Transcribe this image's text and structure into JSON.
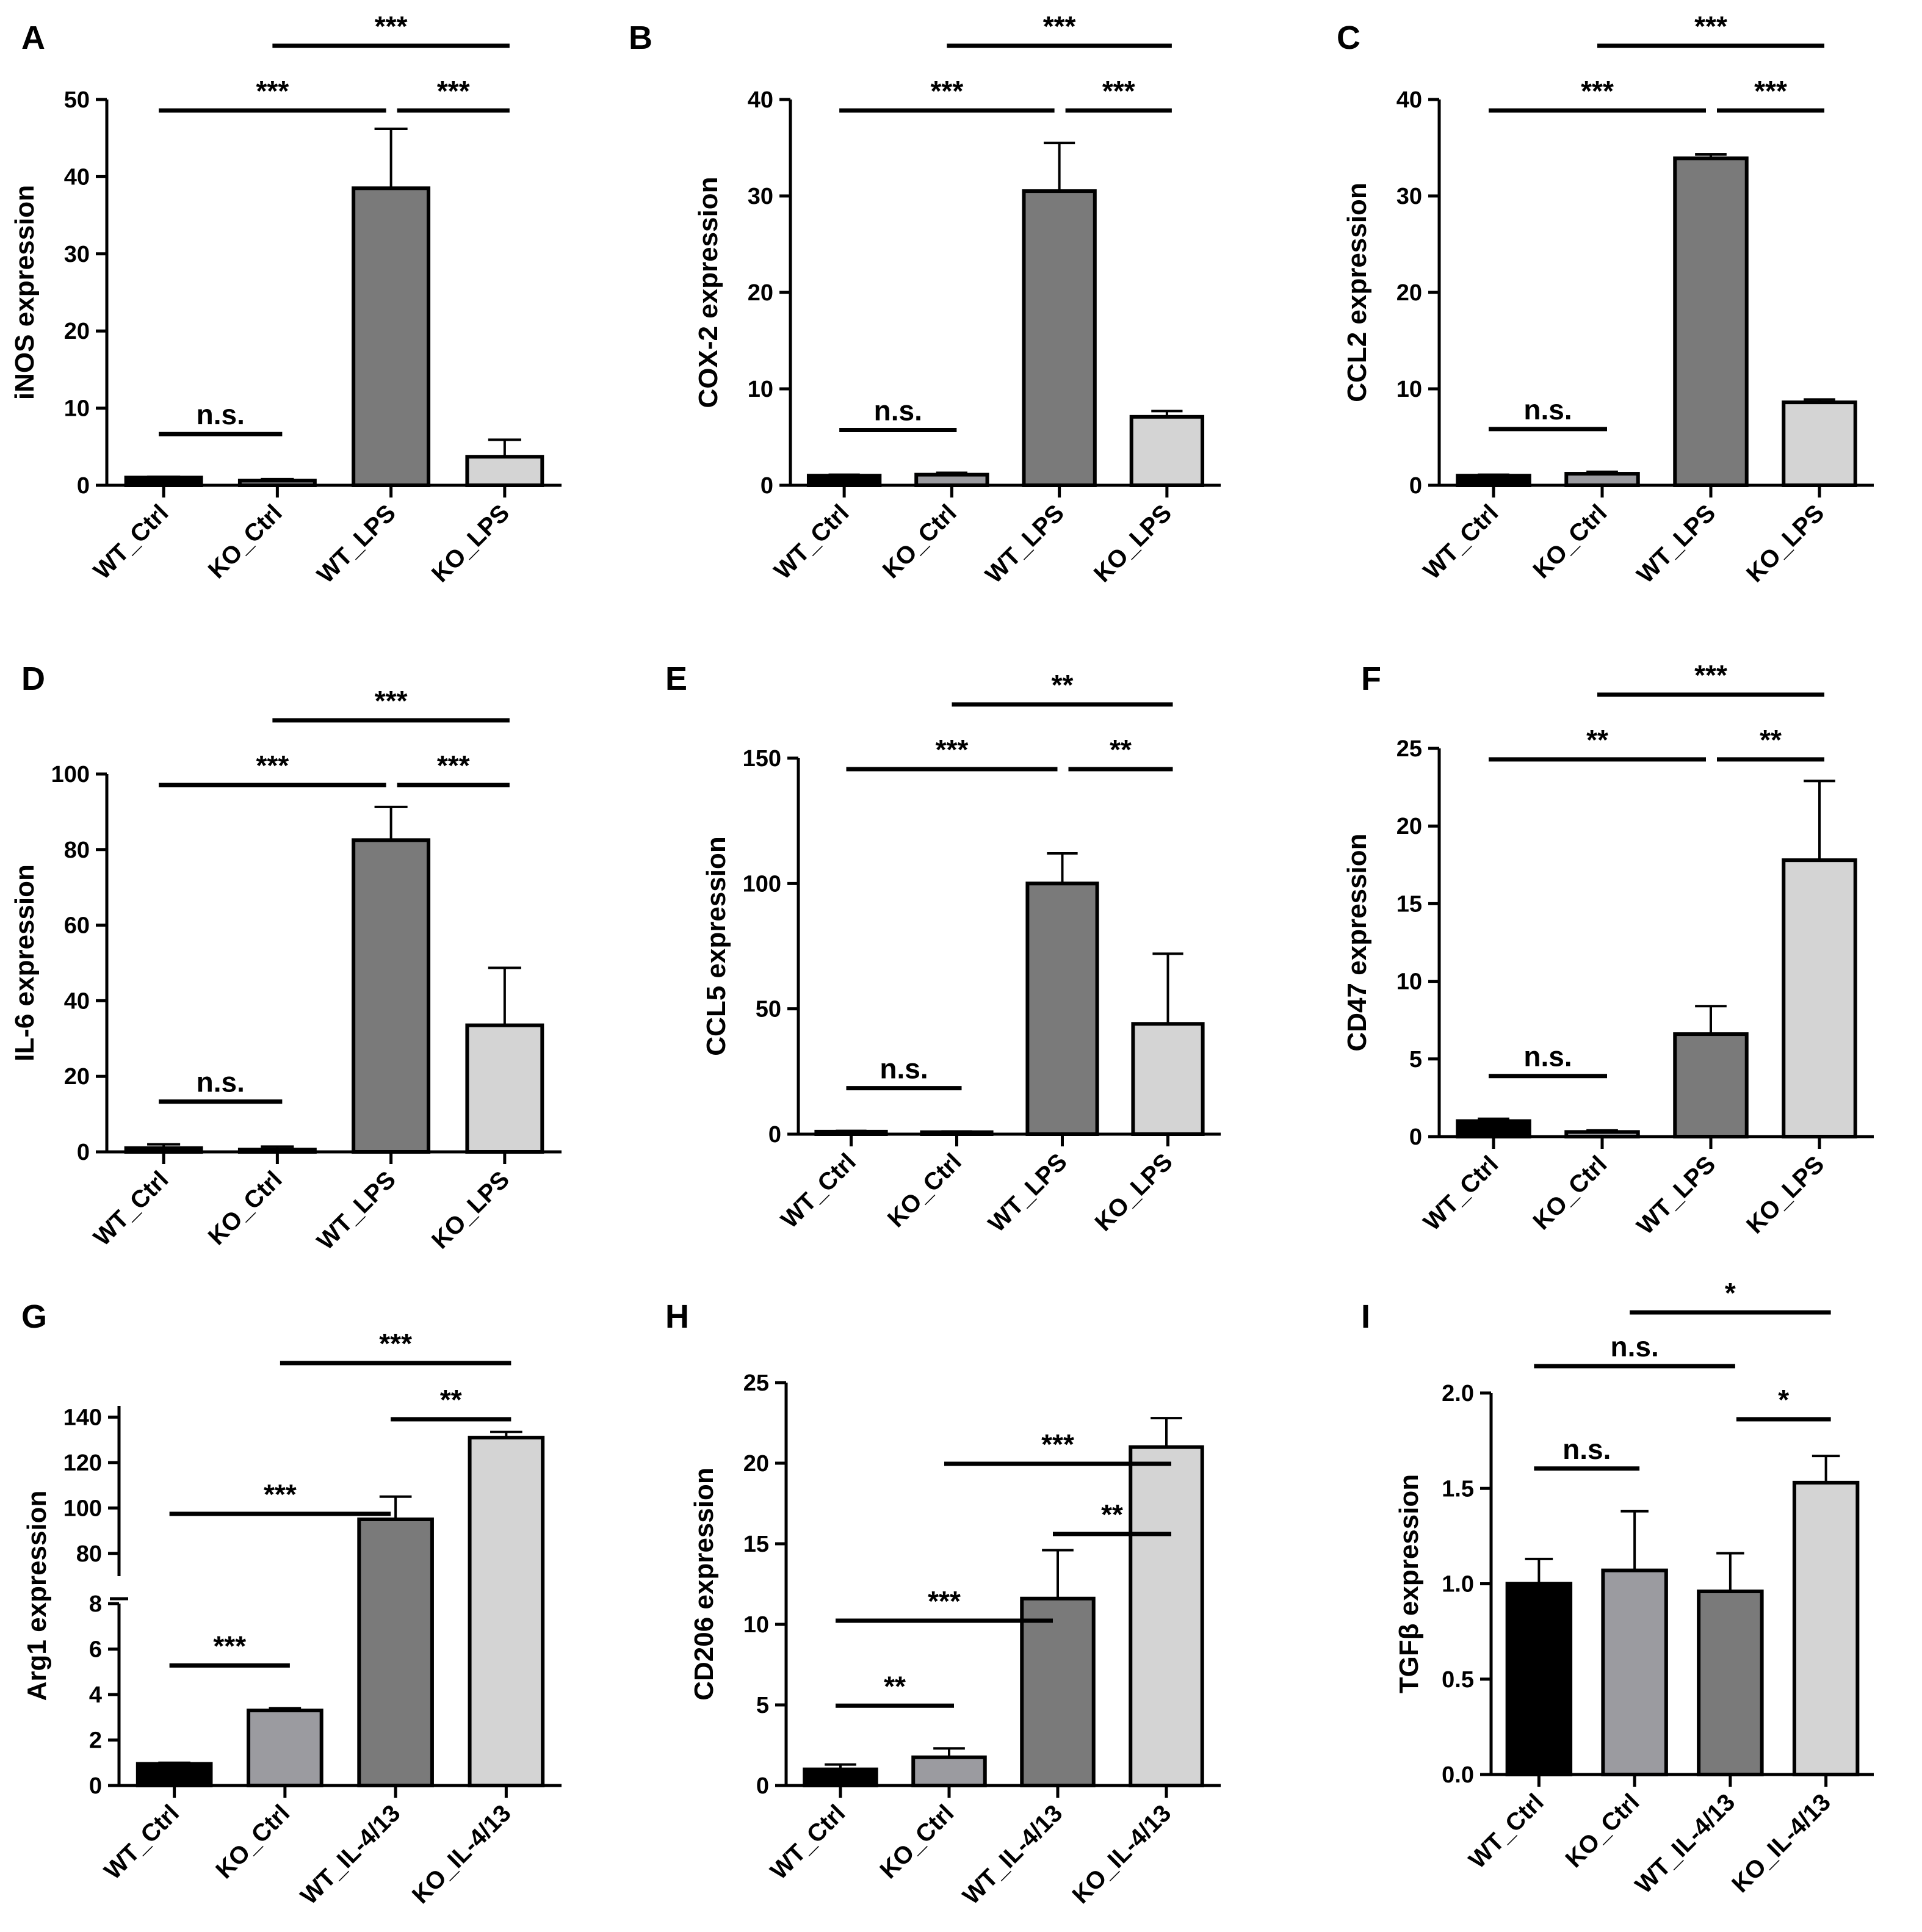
{
  "figure": {
    "panel_count": 9
  },
  "chart_data": [
    {
      "panel": "A",
      "type": "bar",
      "ylabel": "iNOS expression",
      "categories": [
        "WT_Ctrl",
        "KO_Ctrl",
        "WT_LPS",
        "KO_LPS"
      ],
      "values": [
        1.0,
        0.6,
        38.5,
        3.7
      ],
      "errors": [
        0.1,
        0.2,
        7.7,
        2.2
      ],
      "colors": [
        "#000000",
        "#9b9ba0",
        "#7a7a7a",
        "#d4d4d4"
      ],
      "ylim": [
        0,
        50
      ],
      "yticks": [
        0,
        10,
        20,
        30,
        40,
        50
      ],
      "brackets": [
        {
          "from": 0,
          "to": 1,
          "label": "n.s.",
          "level": 0
        },
        {
          "from": 0,
          "to": 2,
          "label": "***",
          "level": 1
        },
        {
          "from": 2,
          "to": 3,
          "label": "***",
          "level": 1
        },
        {
          "from": 1,
          "to": 3,
          "label": "***",
          "level": 2
        }
      ]
    },
    {
      "panel": "B",
      "type": "bar",
      "ylabel": "COX-2 expression",
      "categories": [
        "WT_Ctrl",
        "KO_Ctrl",
        "WT_LPS",
        "KO_LPS"
      ],
      "values": [
        1.0,
        1.1,
        30.5,
        7.1
      ],
      "errors": [
        0.1,
        0.2,
        5.0,
        0.6
      ],
      "colors": [
        "#000000",
        "#9b9ba0",
        "#7a7a7a",
        "#d4d4d4"
      ],
      "ylim": [
        0,
        40
      ],
      "yticks": [
        0,
        10,
        20,
        30,
        40
      ],
      "brackets": [
        {
          "from": 0,
          "to": 1,
          "label": "n.s.",
          "level": 0
        },
        {
          "from": 0,
          "to": 2,
          "label": "***",
          "level": 1
        },
        {
          "from": 2,
          "to": 3,
          "label": "***",
          "level": 1
        },
        {
          "from": 1,
          "to": 3,
          "label": "***",
          "level": 2
        }
      ]
    },
    {
      "panel": "C",
      "type": "bar",
      "ylabel": "CCL2 expression",
      "categories": [
        "WT_Ctrl",
        "KO_Ctrl",
        "WT_LPS",
        "KO_LPS"
      ],
      "values": [
        1.0,
        1.2,
        33.9,
        8.6
      ],
      "errors": [
        0.1,
        0.2,
        0.4,
        0.3
      ],
      "colors": [
        "#000000",
        "#9b9ba0",
        "#7a7a7a",
        "#d4d4d4"
      ],
      "ylim": [
        0,
        40
      ],
      "yticks": [
        0,
        10,
        20,
        30,
        40
      ],
      "brackets": [
        {
          "from": 0,
          "to": 1,
          "label": "n.s.",
          "level": 0
        },
        {
          "from": 0,
          "to": 2,
          "label": "***",
          "level": 1
        },
        {
          "from": 2,
          "to": 3,
          "label": "***",
          "level": 1
        },
        {
          "from": 1,
          "to": 3,
          "label": "***",
          "level": 2
        }
      ]
    },
    {
      "panel": "D",
      "type": "bar",
      "ylabel": "IL-6 expression",
      "categories": [
        "WT_Ctrl",
        "KO_Ctrl",
        "WT_LPS",
        "KO_LPS"
      ],
      "values": [
        1.0,
        0.6,
        82.5,
        33.5
      ],
      "errors": [
        1.0,
        0.8,
        8.8,
        15.2
      ],
      "colors": [
        "#000000",
        "#9b9ba0",
        "#7a7a7a",
        "#d4d4d4"
      ],
      "ylim": [
        0,
        100
      ],
      "yticks": [
        0,
        20,
        40,
        60,
        80,
        100
      ],
      "brackets": [
        {
          "from": 0,
          "to": 1,
          "label": "n.s.",
          "level": 0
        },
        {
          "from": 0,
          "to": 2,
          "label": "***",
          "level": 1
        },
        {
          "from": 2,
          "to": 3,
          "label": "***",
          "level": 1
        },
        {
          "from": 1,
          "to": 3,
          "label": "***",
          "level": 2
        }
      ]
    },
    {
      "panel": "E",
      "type": "bar",
      "ylabel": "CCL5 expression",
      "categories": [
        "WT_Ctrl",
        "KO_Ctrl",
        "WT_LPS",
        "KO_LPS"
      ],
      "values": [
        1.0,
        0.8,
        100,
        44
      ],
      "errors": [
        0.3,
        0.3,
        12,
        28
      ],
      "colors": [
        "#000000",
        "#9b9ba0",
        "#7a7a7a",
        "#d4d4d4"
      ],
      "ylim": [
        0,
        150
      ],
      "yticks": [
        0,
        50,
        100,
        150
      ],
      "brackets": [
        {
          "from": 0,
          "to": 1,
          "label": "n.s.",
          "level": 0
        },
        {
          "from": 0,
          "to": 2,
          "label": "***",
          "level": 1
        },
        {
          "from": 2,
          "to": 3,
          "label": "**",
          "level": 1
        },
        {
          "from": 1,
          "to": 3,
          "label": "**",
          "level": 2
        }
      ]
    },
    {
      "panel": "F",
      "type": "bar",
      "ylabel": "CD47 expression",
      "categories": [
        "WT_Ctrl",
        "KO_Ctrl",
        "WT_LPS",
        "KO_LPS"
      ],
      "values": [
        1.0,
        0.3,
        6.6,
        17.8
      ],
      "errors": [
        0.15,
        0.1,
        1.8,
        5.1
      ],
      "colors": [
        "#000000",
        "#9b9ba0",
        "#7a7a7a",
        "#d4d4d4"
      ],
      "ylim": [
        0,
        25
      ],
      "yticks": [
        0,
        5,
        10,
        15,
        20,
        25
      ],
      "brackets": [
        {
          "from": 0,
          "to": 1,
          "label": "n.s.",
          "level": 0
        },
        {
          "from": 0,
          "to": 2,
          "label": "**",
          "level": 1
        },
        {
          "from": 2,
          "to": 3,
          "label": "**",
          "level": 1
        },
        {
          "from": 1,
          "to": 3,
          "label": "***",
          "level": 2
        }
      ]
    },
    {
      "panel": "G",
      "type": "bar",
      "ylabel": "Arg1 expression",
      "categories": [
        "WT_Ctrl",
        "KO_Ctrl",
        "WT_IL-4/13",
        "KO_IL-4/13"
      ],
      "values": [
        0.95,
        3.3,
        95,
        131
      ],
      "errors": [
        0.05,
        0.1,
        10,
        2.5
      ],
      "colors": [
        "#000000",
        "#9b9ba0",
        "#7a7a7a",
        "#d4d4d4"
      ],
      "broken_axis": {
        "lower": [
          0,
          8
        ],
        "upper": [
          70,
          145
        ]
      },
      "yticks_lower": [
        0,
        2,
        4,
        6,
        8
      ],
      "yticks_upper": [
        80,
        100,
        120,
        140
      ],
      "brackets": [
        {
          "from": 0,
          "to": 1,
          "label": "***",
          "level": 0
        },
        {
          "from": 0,
          "to": 2,
          "label": "***",
          "level": 1
        },
        {
          "from": 2,
          "to": 3,
          "label": "**",
          "level": 2
        },
        {
          "from": 1,
          "to": 3,
          "label": "***",
          "level": 3
        }
      ]
    },
    {
      "panel": "H",
      "type": "bar",
      "ylabel": "CD206 expression",
      "categories": [
        "WT_Ctrl",
        "KO_Ctrl",
        "WT_IL-4/13",
        "KO_IL-4/13"
      ],
      "values": [
        1.0,
        1.75,
        11.6,
        21.0
      ],
      "errors": [
        0.3,
        0.55,
        3.0,
        1.8
      ],
      "colors": [
        "#000000",
        "#9b9ba0",
        "#7a7a7a",
        "#d4d4d4"
      ],
      "ylim": [
        0,
        25
      ],
      "yticks": [
        0,
        5,
        10,
        15,
        20,
        25
      ],
      "brackets": [
        {
          "from": 0,
          "to": 1,
          "label": "**",
          "level": 0
        },
        {
          "from": 0,
          "to": 2,
          "label": "***",
          "level": 1
        },
        {
          "from": 2,
          "to": 3,
          "label": "**",
          "level": 2
        },
        {
          "from": 1,
          "to": 3,
          "label": "***",
          "level": 3
        }
      ]
    },
    {
      "panel": "I",
      "type": "bar",
      "ylabel": "TGFβ expression",
      "categories": [
        "WT_Ctrl",
        "KO_Ctrl",
        "WT_IL-4/13",
        "KO_IL-4/13"
      ],
      "values": [
        1.0,
        1.07,
        0.96,
        1.53
      ],
      "errors": [
        0.13,
        0.31,
        0.2,
        0.14
      ],
      "colors": [
        "#000000",
        "#9b9ba0",
        "#7a7a7a",
        "#d4d4d4"
      ],
      "ylim": [
        0,
        2.0
      ],
      "yticks": [
        0.0,
        0.5,
        1.0,
        1.5,
        2.0
      ],
      "ytick_format": "1dp",
      "brackets": [
        {
          "from": 0,
          "to": 1,
          "label": "n.s.",
          "level": 0
        },
        {
          "from": 2,
          "to": 3,
          "label": "*",
          "level": 1
        },
        {
          "from": 0,
          "to": 2,
          "label": "n.s.",
          "level": 2
        },
        {
          "from": 1,
          "to": 3,
          "label": "*",
          "level": 3
        }
      ]
    }
  ]
}
